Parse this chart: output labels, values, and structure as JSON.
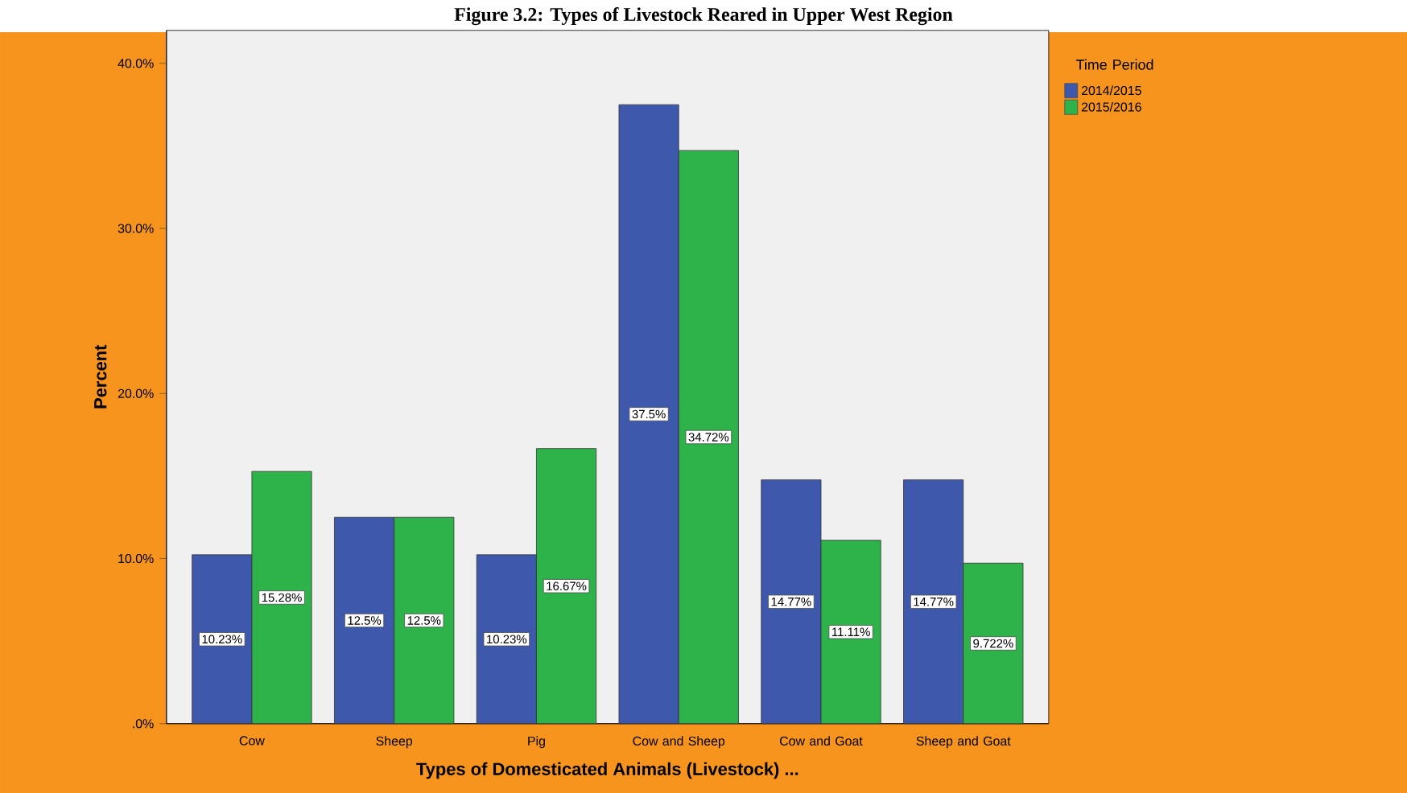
{
  "chart_data": {
    "type": "bar",
    "title": "Figure 3.2: Types of Livestock Reared in Upper West Region",
    "xlabel": "Types of Domesticated Animals (Livestock) ...",
    "ylabel": "Percent",
    "legend_title": "Time Period",
    "categories": [
      "Cow",
      "Sheep",
      "Pig",
      "Cow and Sheep",
      "Cow and Goat",
      "Sheep and Goat"
    ],
    "series": [
      {
        "name": "2014/2015",
        "color": "#3e58ac",
        "values": [
          10.23,
          12.5,
          10.23,
          37.5,
          14.77,
          14.77
        ],
        "value_labels": [
          "10.23%",
          "12.5%",
          "10.23%",
          "37.5%",
          "14.77%",
          "14.77%"
        ]
      },
      {
        "name": "2015/2016",
        "color": "#2db34a",
        "values": [
          15.28,
          12.5,
          16.67,
          34.72,
          11.11,
          9.722
        ],
        "value_labels": [
          "15.28%",
          "12.5%",
          "16.67%",
          "34.72%",
          "11.11%",
          "9.722%"
        ]
      }
    ],
    "ylim": [
      0,
      42
    ],
    "yticks": [
      {
        "value": 0,
        "label": ".0%"
      },
      {
        "value": 10,
        "label": "10.0%"
      },
      {
        "value": 20,
        "label": "20.0%"
      },
      {
        "value": 30,
        "label": "30.0%"
      },
      {
        "value": 40,
        "label": "40.0%"
      }
    ],
    "grid": false,
    "legend": "top right"
  }
}
